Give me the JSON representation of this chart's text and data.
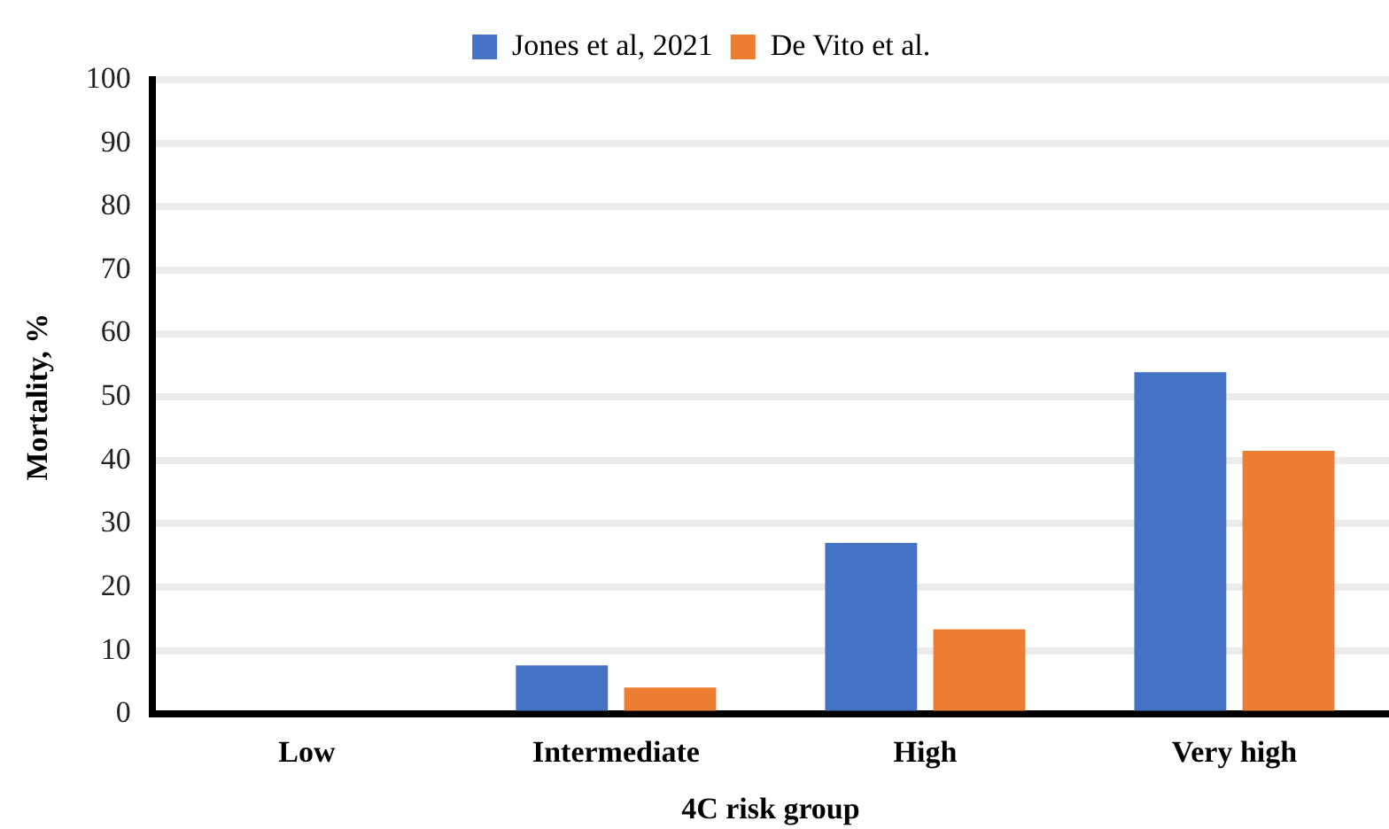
{
  "chart_data": {
    "type": "bar",
    "xlabel": "4C risk group",
    "ylabel": "Mortality, %",
    "categories": [
      "Low",
      "Intermediate",
      "High",
      "Very high"
    ],
    "series": [
      {
        "name": "Jones et al, 2021",
        "color": "#4472c4",
        "values": [
          0,
          7.7,
          27,
          53.9
        ]
      },
      {
        "name": "De Vito et al.",
        "color": "#ed7d31",
        "values": [
          0,
          4.2,
          13.4,
          41.5
        ]
      }
    ],
    "ylim": [
      0,
      100
    ],
    "yticks": [
      0,
      10,
      20,
      30,
      40,
      50,
      60,
      70,
      80,
      90,
      100
    ],
    "grid": "y",
    "legend": "top"
  }
}
